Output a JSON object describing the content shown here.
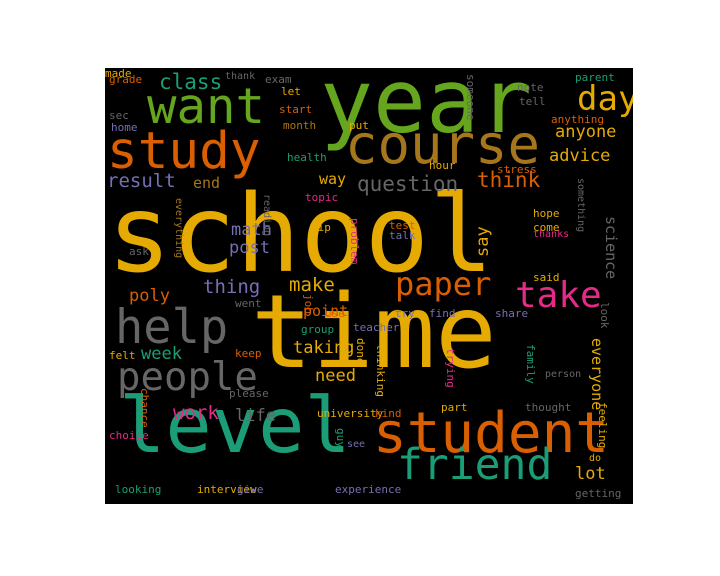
{
  "chart_data": {
    "type": "wordcloud",
    "title": "",
    "background": "#000000",
    "palette": {
      "orange": "#d95f02",
      "yellow": "#e6ab02",
      "green": "#66a61e",
      "teal": "#1b9e77",
      "purple": "#7570b3",
      "magenta": "#e7298a",
      "gray": "#666666",
      "brown": "#a6761d"
    },
    "words": [
      {
        "text": "school",
        "weight": 100,
        "color": "yellow"
      },
      {
        "text": "time",
        "weight": 95,
        "color": "yellow"
      },
      {
        "text": "year",
        "weight": 82,
        "color": "green"
      },
      {
        "text": "level",
        "weight": 72,
        "color": "teal"
      },
      {
        "text": "student",
        "weight": 52,
        "color": "orange"
      },
      {
        "text": "course",
        "weight": 50,
        "color": "brown"
      },
      {
        "text": "study",
        "weight": 48,
        "color": "orange"
      },
      {
        "text": "want",
        "weight": 46,
        "color": "green"
      },
      {
        "text": "help",
        "weight": 44,
        "color": "gray"
      },
      {
        "text": "friend",
        "weight": 40,
        "color": "teal"
      },
      {
        "text": "people",
        "weight": 36,
        "color": "gray"
      },
      {
        "text": "take",
        "weight": 34,
        "color": "magenta"
      },
      {
        "text": "day",
        "weight": 32,
        "color": "yellow"
      },
      {
        "text": "paper",
        "weight": 30,
        "color": "orange"
      },
      {
        "text": "question",
        "weight": 20,
        "color": "gray"
      },
      {
        "text": "class",
        "weight": 20,
        "color": "teal"
      },
      {
        "text": "think",
        "weight": 20,
        "color": "orange"
      },
      {
        "text": "result",
        "weight": 18,
        "color": "purple"
      },
      {
        "text": "thing",
        "weight": 18,
        "color": "purple"
      },
      {
        "text": "make",
        "weight": 18,
        "color": "yellow"
      },
      {
        "text": "work",
        "weight": 18,
        "color": "magenta"
      },
      {
        "text": "advice",
        "weight": 16,
        "color": "yellow"
      },
      {
        "text": "anyone",
        "weight": 16,
        "color": "yellow"
      },
      {
        "text": "math",
        "weight": 16,
        "color": "purple"
      },
      {
        "text": "post",
        "weight": 16,
        "color": "purple"
      },
      {
        "text": "poly",
        "weight": 16,
        "color": "orange"
      },
      {
        "text": "week",
        "weight": 16,
        "color": "teal"
      },
      {
        "text": "life",
        "weight": 16,
        "color": "gray"
      },
      {
        "text": "need",
        "weight": 16,
        "color": "yellow"
      },
      {
        "text": "taking",
        "weight": 16,
        "color": "yellow"
      },
      {
        "text": "say",
        "weight": 16,
        "color": "yellow"
      },
      {
        "text": "lot",
        "weight": 16,
        "color": "yellow"
      },
      {
        "text": "everyone",
        "weight": 14,
        "color": "yellow"
      },
      {
        "text": "science",
        "weight": 14,
        "color": "gray"
      },
      {
        "text": "way",
        "weight": 14,
        "color": "yellow"
      },
      {
        "text": "end",
        "weight": 14,
        "color": "brown"
      },
      {
        "text": "point",
        "weight": 14,
        "color": "orange"
      },
      {
        "text": "grade",
        "weight": 10,
        "color": "orange"
      },
      {
        "text": "thank",
        "weight": 9,
        "color": "gray"
      },
      {
        "text": "exam",
        "weight": 10,
        "color": "gray"
      },
      {
        "text": "let",
        "weight": 10,
        "color": "yellow"
      },
      {
        "text": "sec",
        "weight": 10,
        "color": "gray"
      },
      {
        "text": "home",
        "weight": 10,
        "color": "purple"
      },
      {
        "text": "start",
        "weight": 10,
        "color": "orange"
      },
      {
        "text": "month",
        "weight": 10,
        "color": "brown"
      },
      {
        "text": "put",
        "weight": 10,
        "color": "yellow"
      },
      {
        "text": "someone",
        "weight": 10,
        "color": "gray"
      },
      {
        "text": "note",
        "weight": 10,
        "color": "gray"
      },
      {
        "text": "tell",
        "weight": 10,
        "color": "gray"
      },
      {
        "text": "parent",
        "weight": 10,
        "color": "teal"
      },
      {
        "text": "anything",
        "weight": 10,
        "color": "orange"
      },
      {
        "text": "health",
        "weight": 10,
        "color": "teal"
      },
      {
        "text": "reading",
        "weight": 9,
        "color": "gray"
      },
      {
        "text": "topic",
        "weight": 10,
        "color": "magenta"
      },
      {
        "text": "hour",
        "weight": 10,
        "color": "yellow"
      },
      {
        "text": "stress",
        "weight": 10,
        "color": "orange"
      },
      {
        "text": "something",
        "weight": 9,
        "color": "gray"
      },
      {
        "text": "hope",
        "weight": 10,
        "color": "yellow"
      },
      {
        "text": "come",
        "weight": 10,
        "color": "yellow"
      },
      {
        "text": "thanks",
        "weight": 9,
        "color": "magenta"
      },
      {
        "text": "tip",
        "weight": 10,
        "color": "yellow"
      },
      {
        "text": "test",
        "weight": 10,
        "color": "orange"
      },
      {
        "text": "talk",
        "weight": 10,
        "color": "purple"
      },
      {
        "text": "problem",
        "weight": 10,
        "color": "magenta"
      },
      {
        "text": "job",
        "weight": 10,
        "color": "orange"
      },
      {
        "text": "ask",
        "weight": 10,
        "color": "gray"
      },
      {
        "text": "everything",
        "weight": 9,
        "color": "brown"
      },
      {
        "text": "said",
        "weight": 10,
        "color": "yellow"
      },
      {
        "text": "went",
        "weight": 10,
        "color": "gray"
      },
      {
        "text": "use",
        "weight": 10,
        "color": "orange"
      },
      {
        "text": "try",
        "weight": 10,
        "color": "purple"
      },
      {
        "text": "find",
        "weight": 10,
        "color": "purple"
      },
      {
        "text": "share",
        "weight": 10,
        "color": "purple"
      },
      {
        "text": "look",
        "weight": 10,
        "color": "gray"
      },
      {
        "text": "felt",
        "weight": 10,
        "color": "yellow"
      },
      {
        "text": "keep",
        "weight": 10,
        "color": "orange"
      },
      {
        "text": "group",
        "weight": 10,
        "color": "teal"
      },
      {
        "text": "teacher",
        "weight": 10,
        "color": "purple"
      },
      {
        "text": "done",
        "weight": 10,
        "color": "yellow"
      },
      {
        "text": "thinking",
        "weight": 10,
        "color": "yellow"
      },
      {
        "text": "trying",
        "weight": 10,
        "color": "magenta"
      },
      {
        "text": "family",
        "weight": 10,
        "color": "teal"
      },
      {
        "text": "person",
        "weight": 9,
        "color": "gray"
      },
      {
        "text": "please",
        "weight": 10,
        "color": "gray"
      },
      {
        "text": "chance",
        "weight": 10,
        "color": "orange"
      },
      {
        "text": "university",
        "weight": 10,
        "color": "yellow"
      },
      {
        "text": "kind",
        "weight": 10,
        "color": "orange"
      },
      {
        "text": "part",
        "weight": 10,
        "color": "yellow"
      },
      {
        "text": "thought",
        "weight": 10,
        "color": "gray"
      },
      {
        "text": "feeling",
        "weight": 10,
        "color": "yellow"
      },
      {
        "text": "choice",
        "weight": 10,
        "color": "magenta"
      },
      {
        "text": "guy",
        "weight": 10,
        "color": "teal"
      },
      {
        "text": "see",
        "weight": 9,
        "color": "purple"
      },
      {
        "text": "do",
        "weight": 9,
        "color": "yellow"
      },
      {
        "text": "looking",
        "weight": 10,
        "color": "teal"
      },
      {
        "text": "interview",
        "weight": 10,
        "color": "yellow"
      },
      {
        "text": "give",
        "weight": 10,
        "color": "purple"
      },
      {
        "text": "experience",
        "weight": 10,
        "color": "purple"
      },
      {
        "text": "getting",
        "weight": 10,
        "color": "gray"
      },
      {
        "text": "made",
        "weight": 10,
        "color": "yellow"
      }
    ]
  }
}
